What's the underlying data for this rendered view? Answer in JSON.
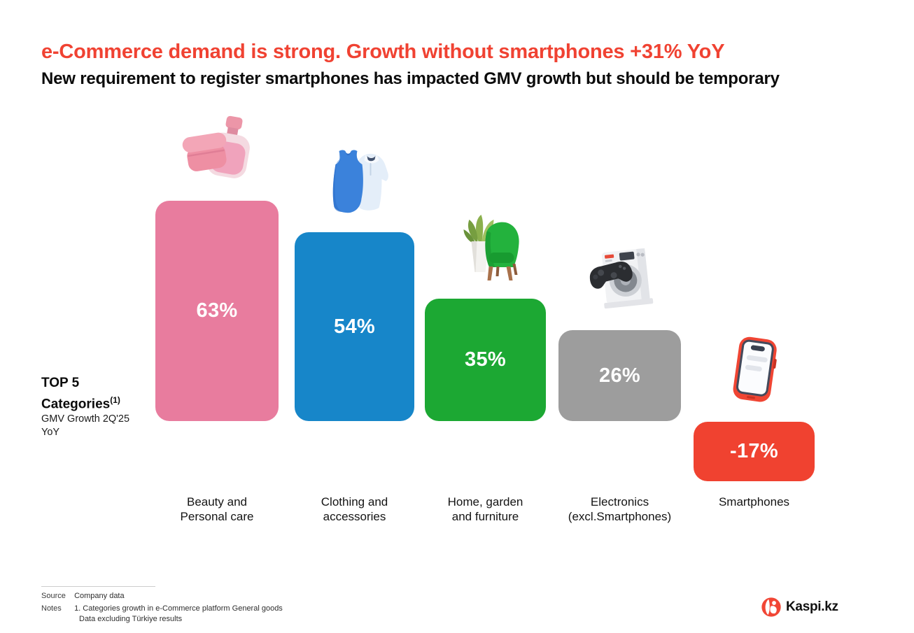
{
  "slide": {
    "title": "e-Commerce demand is strong. Growth without smartphones +31% YoY",
    "subtitle": "New requirement to register smartphones has impacted GMV growth but should be temporary",
    "accent_color": "#F04232"
  },
  "left_label": {
    "title_line1": "TOP 5",
    "title_line2": "Categories",
    "superscript": "(1)",
    "subtitle_line1": "GMV Growth 2Q'25",
    "subtitle_line2": "YoY"
  },
  "chart_data": {
    "type": "bar",
    "title": "TOP 5 Categories (1)",
    "ylabel": "GMV Growth 2Q'25 YoY (%)",
    "xlabel": "",
    "categories": [
      "Beauty and\nPersonal care",
      "Clothing and\naccessories",
      "Home, garden\nand furniture",
      "Electronics\n(excl.Smartphones)",
      "Smartphones"
    ],
    "values": [
      63,
      54,
      35,
      26,
      -17
    ],
    "value_labels": [
      "63%",
      "54%",
      "35%",
      "26%",
      "-17%"
    ],
    "bar_colors": [
      "#E87C9E",
      "#1786C9",
      "#1CA833",
      "#9D9D9D",
      "#F04230"
    ],
    "icons": [
      "cosmetics-icon",
      "clothing-icon",
      "furniture-icon",
      "electronics-icon",
      "smartphone-icon"
    ],
    "ylim": [
      -20,
      70
    ],
    "grid": false,
    "legend": false
  },
  "footer": {
    "source_label": "Source",
    "source_value": "Company data",
    "notes_label": "Notes",
    "note_line1": "1. Categories growth in e-Commerce platform General goods",
    "note_line2": "Data excluding Türkiye results"
  },
  "logo": {
    "text": "Kaspi.kz",
    "brand_color": "#F14635"
  }
}
